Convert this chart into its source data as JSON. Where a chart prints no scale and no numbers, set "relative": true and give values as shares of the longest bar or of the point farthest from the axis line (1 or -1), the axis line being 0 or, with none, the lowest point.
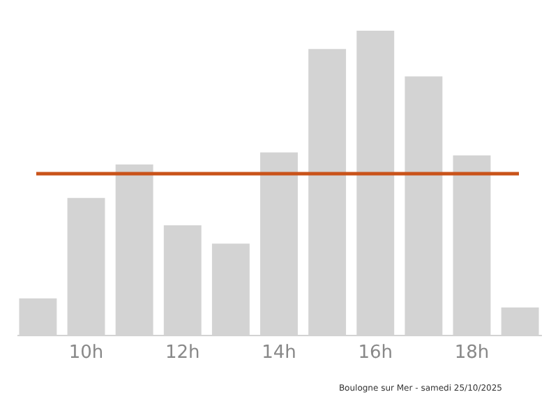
{
  "chart_data": {
    "type": "bar",
    "relative": true,
    "categories": [
      null,
      "10h",
      null,
      "12h",
      null,
      "14h",
      null,
      "16h",
      null,
      "18h",
      null
    ],
    "values": [
      0.12,
      0.45,
      0.56,
      0.36,
      0.3,
      0.6,
      0.94,
      1,
      0.85,
      0.59,
      0.09
    ],
    "color": "#d3d3d3",
    "ref_lines": [
      {
        "axis": "y",
        "value": 0.53,
        "label": null,
        "color": "#c9531a"
      }
    ],
    "annotations": [
      "Boulogne sur Mer - samedi 25/10/2025"
    ],
    "grid": false
  }
}
